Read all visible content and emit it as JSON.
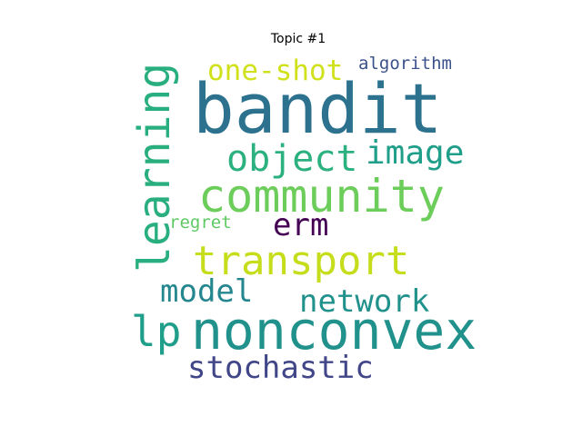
{
  "figure": {
    "title": "Topic #1"
  },
  "wordcloud": {
    "words": [
      {
        "text": "bandit",
        "color": "#2c728e"
      },
      {
        "text": "community",
        "color": "#6ccd5a"
      },
      {
        "text": "nonconvex",
        "color": "#21918c"
      },
      {
        "text": "transport",
        "color": "#c5dd1a"
      },
      {
        "text": "learning",
        "color": "#29af7f"
      },
      {
        "text": "object",
        "color": "#2bb07f"
      },
      {
        "text": "image",
        "color": "#1f9e89"
      },
      {
        "text": "one-shot",
        "color": "#d0e11c"
      },
      {
        "text": "erm",
        "color": "#440154"
      },
      {
        "text": "network",
        "color": "#21918c"
      },
      {
        "text": "model",
        "color": "#24868e"
      },
      {
        "text": "stochastic",
        "color": "#404688"
      },
      {
        "text": "lp",
        "color": "#1f9e89"
      },
      {
        "text": "algorithm",
        "color": "#3b518b"
      },
      {
        "text": "regret",
        "color": "#5ec962"
      }
    ]
  }
}
